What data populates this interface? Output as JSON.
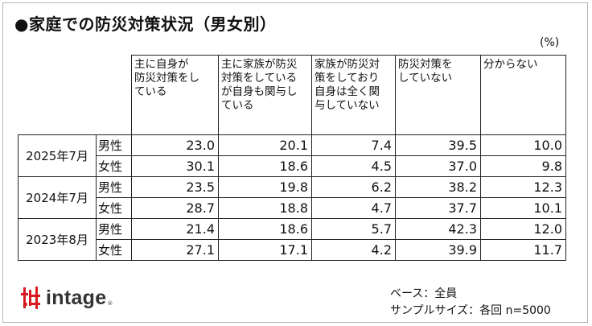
{
  "title": "●家庭での防災対策状況（男女別）",
  "unit": "(%)",
  "columns": [
    "主に自身が\n防災対策をし\nている",
    "主に家族が防災\n対策をしている\nが自身も関与し\nている",
    "家族が防災対\n策をしており\n自身は全く関\n与していない",
    "防災対策を\nしていない",
    "分からない"
  ],
  "groups": [
    {
      "year": "2025年7月",
      "rows": [
        {
          "sex": "男性",
          "values": [
            "23.0",
            "20.1",
            "7.4",
            "39.5",
            "10.0"
          ]
        },
        {
          "sex": "女性",
          "values": [
            "30.1",
            "18.6",
            "4.5",
            "37.0",
            "9.8"
          ]
        }
      ]
    },
    {
      "year": "2024年7月",
      "rows": [
        {
          "sex": "男性",
          "values": [
            "23.5",
            "19.8",
            "6.2",
            "38.2",
            "12.3"
          ]
        },
        {
          "sex": "女性",
          "values": [
            "28.7",
            "18.8",
            "4.7",
            "37.7",
            "10.1"
          ]
        }
      ]
    },
    {
      "year": "2023年8月",
      "rows": [
        {
          "sex": "男性",
          "values": [
            "21.4",
            "18.6",
            "5.7",
            "42.3",
            "12.0"
          ]
        },
        {
          "sex": "女性",
          "values": [
            "27.1",
            "17.1",
            "4.2",
            "39.9",
            "11.7"
          ]
        }
      ]
    }
  ],
  "logo": {
    "text": "intage",
    "mark": "®",
    "color": "#d71920"
  },
  "notes": {
    "base": "ベース：全員",
    "sample": "サンプルサイズ：各回 n=5000"
  }
}
